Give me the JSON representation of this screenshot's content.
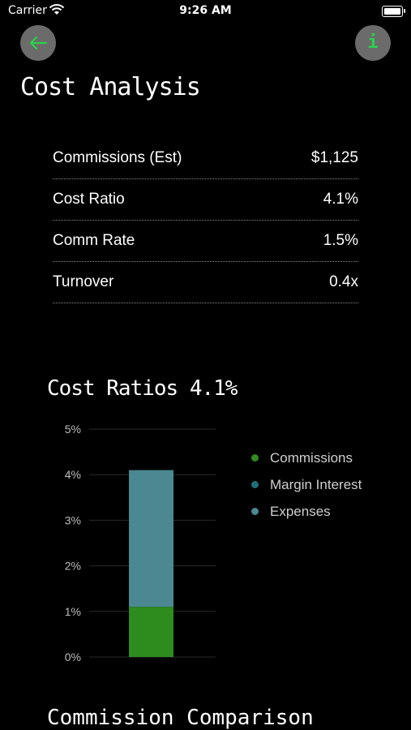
{
  "status_bar": {
    "carrier": "Carrier",
    "time": "9:26 AM"
  },
  "header": {
    "back_icon": "arrow-left-icon",
    "info_icon": "info-icon",
    "info_glyph": "i",
    "accent_color": "#2bd14a"
  },
  "page": {
    "title": "Cost Analysis"
  },
  "metrics": [
    {
      "label": "Commissions (Est)",
      "value": "$1,125"
    },
    {
      "label": "Cost Ratio",
      "value": "4.1%"
    },
    {
      "label": "Comm Rate",
      "value": "1.5%"
    },
    {
      "label": "Turnover",
      "value": "0.4x"
    }
  ],
  "chart_data": {
    "type": "bar",
    "stacked": true,
    "title": "Cost Ratios 4.1%",
    "categories": [
      ""
    ],
    "series": [
      {
        "name": "Commissions",
        "values": [
          1.1
        ],
        "color": "#2e8b1e"
      },
      {
        "name": "Margin Interest",
        "values": [
          0
        ],
        "color": "#1f6f7a"
      },
      {
        "name": "Expenses",
        "values": [
          3.0
        ],
        "color": "#4b8891"
      }
    ],
    "y_ticks": [
      "0%",
      "1%",
      "2%",
      "3%",
      "4%",
      "5%"
    ],
    "ylim": [
      0,
      5
    ],
    "grid": true,
    "legend_position": "right"
  },
  "next_section": {
    "title": "Commission Comparison"
  }
}
